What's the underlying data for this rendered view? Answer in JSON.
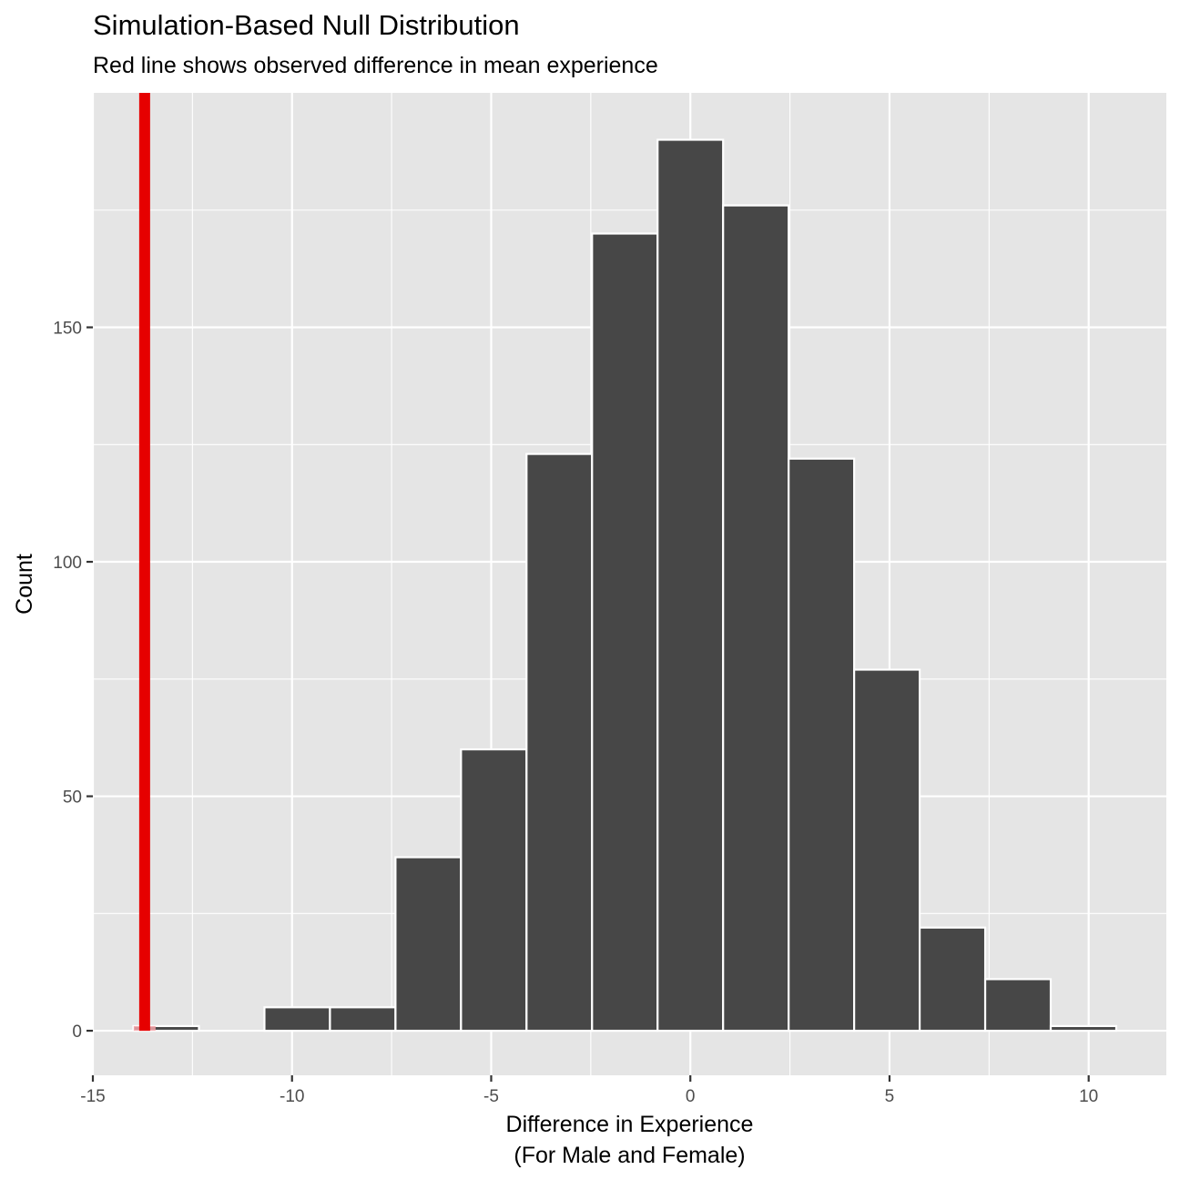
{
  "chart_data": {
    "type": "bar",
    "title": "Simulation-Based Null Distribution",
    "subtitle": "Red line shows observed difference in mean experience",
    "xlabel": [
      "Difference in Experience",
      "(For Male and Female)"
    ],
    "ylabel": "Count",
    "xlim": [
      -15.0,
      11.95
    ],
    "ylim": [
      -9.5,
      200
    ],
    "x_ticks": [
      -15,
      -10,
      -5,
      0,
      5,
      10
    ],
    "x_tick_labels": [
      "-15",
      "-10",
      "-5",
      "0",
      "5",
      "10"
    ],
    "y_ticks": [
      0,
      50,
      100,
      150
    ],
    "y_tick_labels": [
      "0",
      "50",
      "100",
      "150"
    ],
    "bin_width": 1.645,
    "bins": [
      {
        "center": -13.16,
        "count": 1
      },
      {
        "center": -9.87,
        "count": 5
      },
      {
        "center": -8.225,
        "count": 5
      },
      {
        "center": -6.58,
        "count": 37
      },
      {
        "center": -4.935,
        "count": 60
      },
      {
        "center": -3.29,
        "count": 123
      },
      {
        "center": -1.645,
        "count": 170
      },
      {
        "center": 0.0,
        "count": 190
      },
      {
        "center": 1.645,
        "count": 176
      },
      {
        "center": 3.29,
        "count": 122
      },
      {
        "center": 4.935,
        "count": 77
      },
      {
        "center": 6.58,
        "count": 22
      },
      {
        "center": 8.225,
        "count": 11
      },
      {
        "center": 9.87,
        "count": 1
      }
    ],
    "observed_line": {
      "value": -13.7,
      "color": "#e60000"
    },
    "shaded_tail_color": "#f4a3a8",
    "bar_color": "#474747",
    "panel_color": "#e5e5e5",
    "grid": true
  }
}
